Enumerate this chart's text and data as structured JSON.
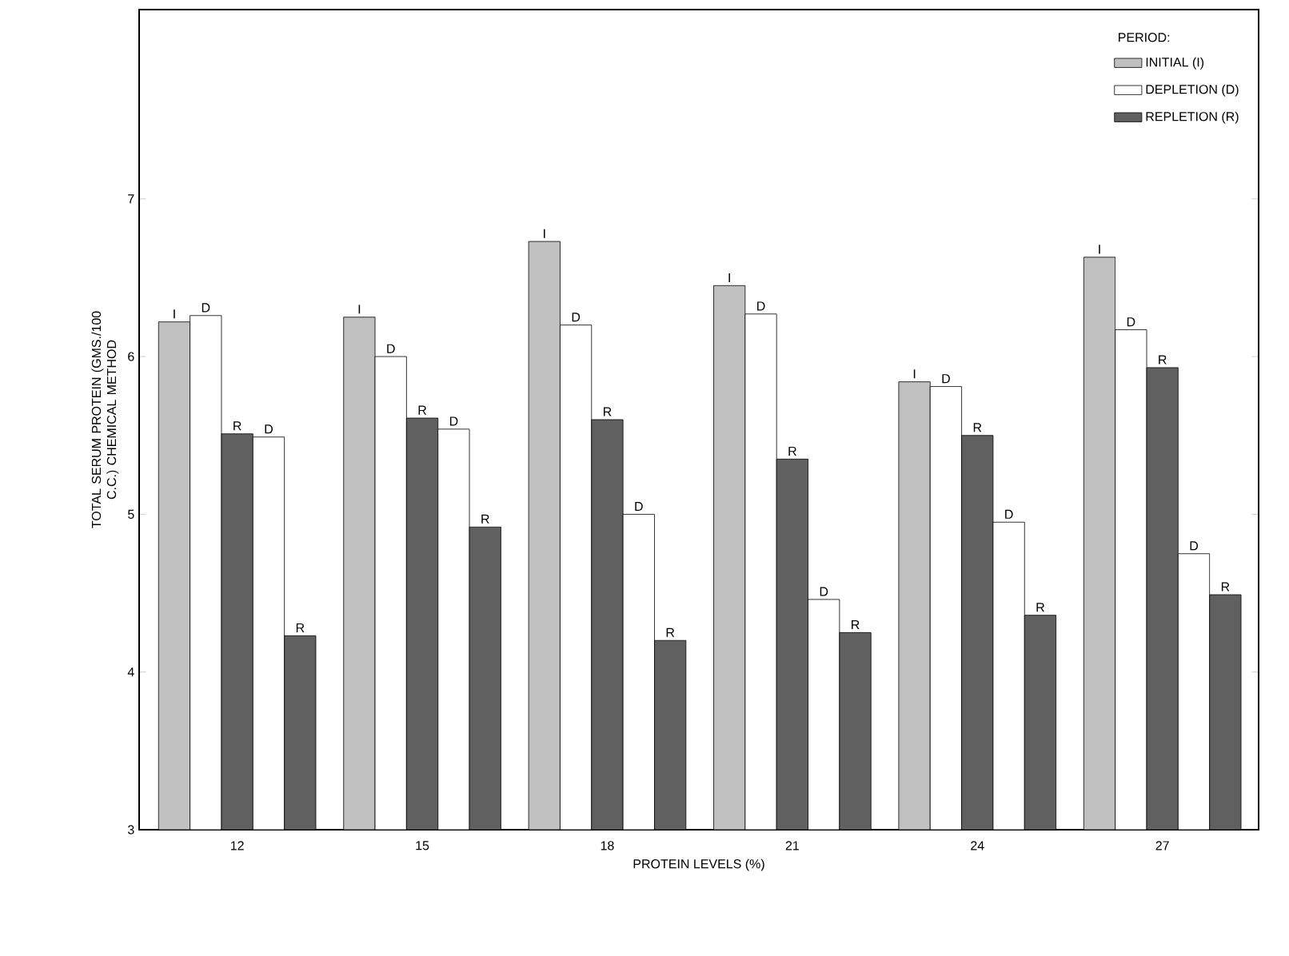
{
  "chart_data": {
    "type": "bar",
    "xlabel": "PROTEIN LEVELS (%)",
    "ylabel": "TOTAL SERUM PROTEIN (GMS./100 C.C.) CHEMICAL METHOD",
    "legend_title": "PERIOD:",
    "categories": [
      "12",
      "15",
      "18",
      "21",
      "24",
      "27"
    ],
    "series": [
      {
        "name": "INITIAL (I)",
        "color": "#c0c0c0",
        "values": [
          6.22,
          6.25,
          6.73,
          6.45,
          5.84,
          6.63
        ],
        "value_labels": [
          "I",
          "I",
          "I",
          "I",
          "I",
          "I"
        ]
      },
      {
        "name": "DEPLETION (D)",
        "color": "#ffffff",
        "values": [
          6.26,
          6.0,
          6.2,
          6.27,
          5.81,
          6.17
        ],
        "value_labels": [
          "D",
          "D",
          "D",
          "D",
          "D",
          "D"
        ]
      },
      {
        "name": "REPLETION (R)",
        "color": "#606060",
        "values": [
          5.51,
          5.61,
          5.6,
          5.35,
          5.5,
          5.93
        ],
        "value_labels": [
          "R",
          "R",
          "R",
          "R",
          "R",
          "R"
        ]
      },
      {
        "color": "#ffffff",
        "values": [
          5.49,
          5.54,
          5.0,
          4.46,
          4.95,
          4.75
        ],
        "value_labels": [
          "D",
          "D",
          "D",
          "D",
          "D",
          "D"
        ]
      },
      {
        "color": "#606060",
        "values": [
          4.23,
          4.92,
          4.2,
          4.25,
          4.36,
          4.49
        ],
        "value_labels": [
          "R",
          "R",
          "R",
          "R",
          "R",
          "R"
        ]
      }
    ],
    "ylim": [
      3,
      8.2
    ],
    "yticks": [
      3,
      4,
      5,
      6,
      7
    ],
    "legend": "top right",
    "grid": false
  }
}
